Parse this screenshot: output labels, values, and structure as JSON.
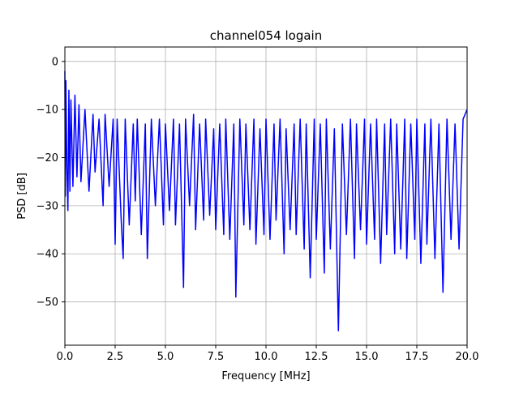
{
  "chart_data": {
    "type": "line",
    "title": "channel054 logain",
    "xlabel": "Frequency [MHz]",
    "ylabel": "PSD [dB]",
    "xlim": [
      0,
      20
    ],
    "ylim": [
      -59,
      3
    ],
    "xticks": [
      0,
      2.5,
      5,
      7.5,
      10,
      12.5,
      15,
      17.5,
      20
    ],
    "xtick_labels": [
      "0.0",
      "2.5",
      "5.0",
      "7.5",
      "10.0",
      "12.5",
      "15.0",
      "17.5",
      "20.0"
    ],
    "yticks": [
      0,
      -10,
      -20,
      -30,
      -40,
      -50
    ],
    "ytick_labels": [
      "0",
      "−10",
      "−20",
      "−30",
      "−40",
      "−50"
    ],
    "grid": true,
    "series": [
      {
        "color": "#0000ff",
        "x": [
          0.0,
          0.02,
          0.05,
          0.1,
          0.15,
          0.2,
          0.25,
          0.3,
          0.4,
          0.5,
          0.6,
          0.7,
          0.8,
          1.0,
          1.2,
          1.4,
          1.5,
          1.7,
          1.9,
          2.0,
          2.2,
          2.4,
          2.5,
          2.6,
          2.8,
          2.9,
          3.0,
          3.2,
          3.4,
          3.5,
          3.6,
          3.8,
          4.0,
          4.1,
          4.3,
          4.5,
          4.7,
          4.9,
          5.0,
          5.2,
          5.4,
          5.5,
          5.7,
          5.9,
          6.0,
          6.2,
          6.4,
          6.5,
          6.7,
          6.9,
          7.0,
          7.2,
          7.4,
          7.5,
          7.7,
          7.9,
          8.0,
          8.2,
          8.4,
          8.5,
          8.7,
          8.9,
          9.0,
          9.2,
          9.4,
          9.5,
          9.7,
          9.9,
          10.0,
          10.2,
          10.4,
          10.5,
          10.7,
          10.9,
          11.0,
          11.2,
          11.4,
          11.5,
          11.7,
          11.9,
          12.0,
          12.2,
          12.4,
          12.5,
          12.7,
          12.9,
          13.0,
          13.2,
          13.4,
          13.6,
          13.8,
          14.0,
          14.2,
          14.4,
          14.5,
          14.7,
          14.9,
          15.0,
          15.2,
          15.4,
          15.5,
          15.7,
          15.9,
          16.0,
          16.2,
          16.4,
          16.5,
          16.7,
          16.9,
          17.0,
          17.2,
          17.4,
          17.5,
          17.7,
          17.9,
          18.0,
          18.2,
          18.4,
          18.6,
          18.8,
          19.0,
          19.2,
          19.4,
          19.6,
          19.8,
          20.0
        ],
        "y": [
          -2,
          -28,
          -4,
          -22,
          -31,
          -6,
          -27,
          -8,
          -26,
          -7,
          -24,
          -9,
          -25,
          -10,
          -27,
          -11,
          -23,
          -12,
          -30,
          -11,
          -26,
          -12,
          -38,
          -12,
          -33,
          -41,
          -12,
          -34,
          -13,
          -29,
          -12,
          -36,
          -13,
          -41,
          -12,
          -30,
          -12,
          -34,
          -13,
          -31,
          -12,
          -34,
          -13,
          -47,
          -12,
          -30,
          -11,
          -35,
          -13,
          -33,
          -12,
          -32,
          -14,
          -35,
          -13,
          -36,
          -12,
          -37,
          -13,
          -49,
          -12,
          -34,
          -13,
          -35,
          -12,
          -38,
          -14,
          -36,
          -12,
          -37,
          -13,
          -33,
          -12,
          -40,
          -14,
          -35,
          -13,
          -36,
          -12,
          -39,
          -13,
          -45,
          -12,
          -37,
          -13,
          -44,
          -12,
          -39,
          -14,
          -56,
          -13,
          -36,
          -12,
          -41,
          -13,
          -35,
          -12,
          -38,
          -13,
          -37,
          -12,
          -42,
          -13,
          -36,
          -12,
          -40,
          -13,
          -39,
          -12,
          -41,
          -13,
          -37,
          -12,
          -42,
          -13,
          -38,
          -12,
          -41,
          -13,
          -48,
          -12,
          -37,
          -13,
          -39,
          -12,
          -10
        ]
      }
    ]
  }
}
